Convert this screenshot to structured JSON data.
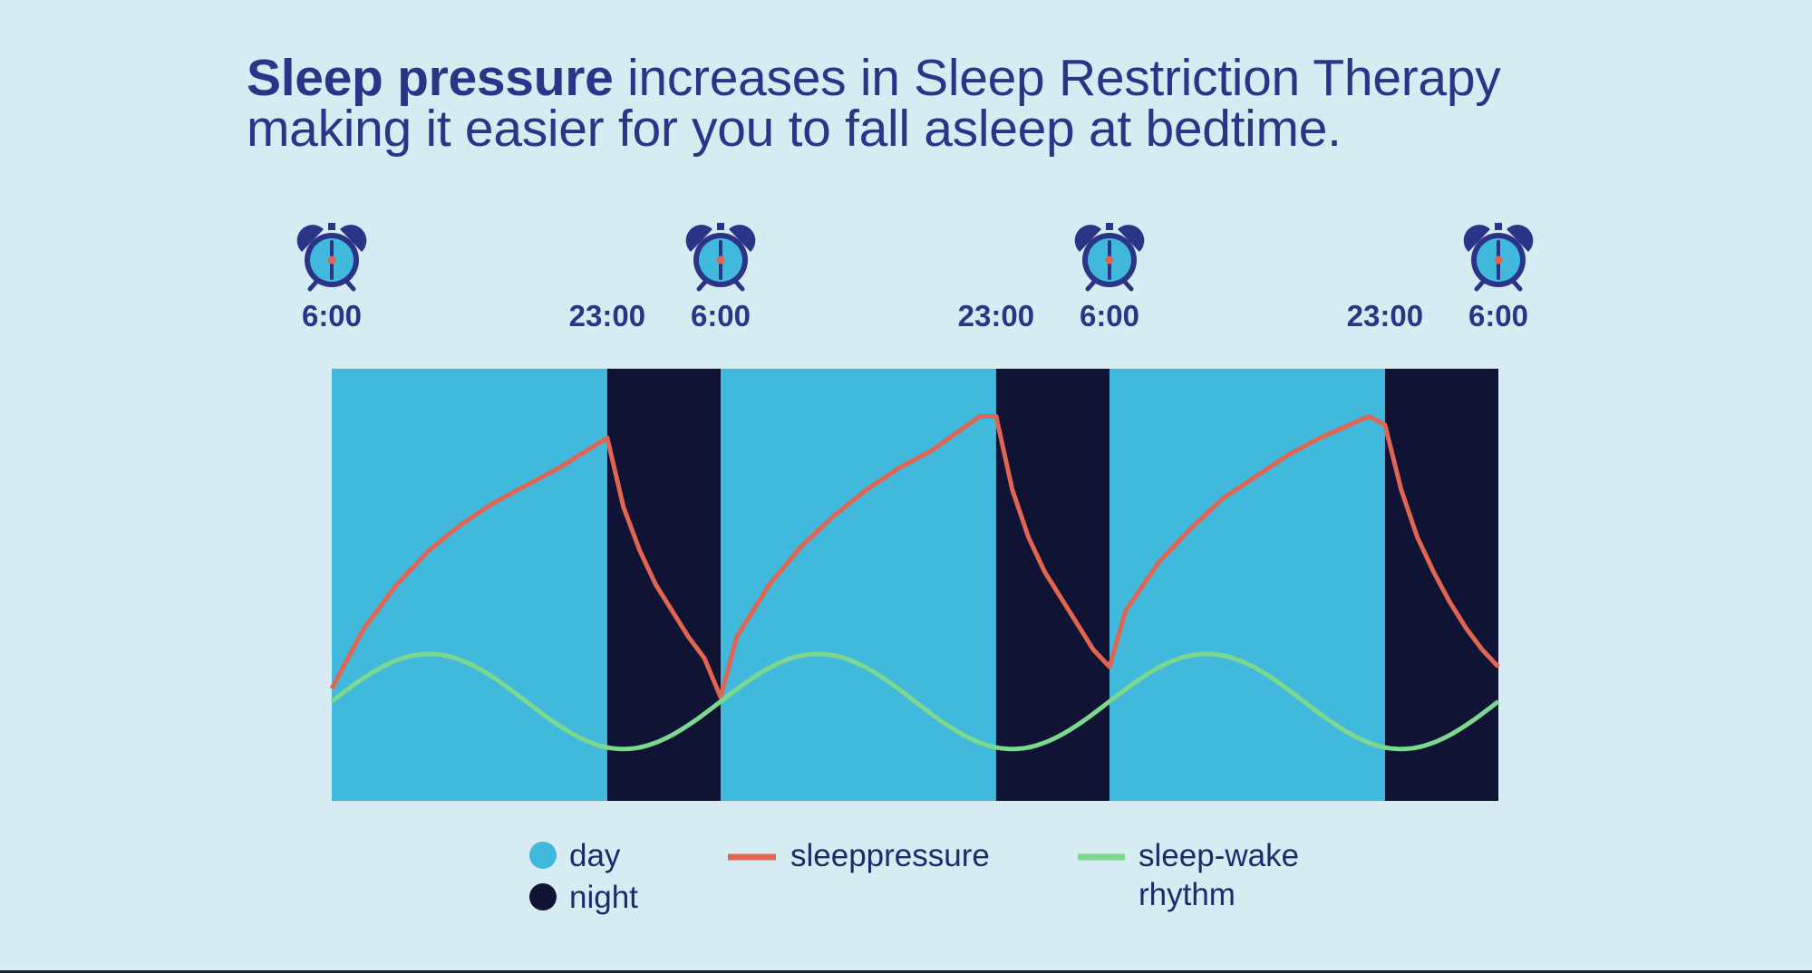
{
  "headline": {
    "bold": "Sleep pressure",
    "line1_rest": " increases in Sleep Restriction Therapy",
    "line2": "making it easier for you to fall asleep at bedtime."
  },
  "colors": {
    "background": "#d6ebf2",
    "day": "#41b9dc",
    "night": "#111335",
    "sleep_pressure": "#e06552",
    "sleep_wake_rhythm": "#7cd88f",
    "text": "#2b3487",
    "clock_face": "#41b9dc",
    "clock_outline": "#2b3487",
    "clock_center": "#e06552"
  },
  "clock_icon": "alarm-clock-icon",
  "chart_data": {
    "type": "area",
    "x_unit": "hours since first 6:00",
    "x_ticks": [
      {
        "x": 0,
        "label": "6:00",
        "clock": true
      },
      {
        "x": 17,
        "label": "23:00",
        "clock": false
      },
      {
        "x": 24,
        "label": "6:00",
        "clock": true
      },
      {
        "x": 41,
        "label": "23:00",
        "clock": false
      },
      {
        "x": 48,
        "label": "6:00",
        "clock": true
      },
      {
        "x": 65,
        "label": "23:00",
        "clock": false
      },
      {
        "x": 72,
        "label": "6:00",
        "clock": true
      }
    ],
    "xlim": [
      0,
      72
    ],
    "ylim": [
      0,
      100
    ],
    "periods": [
      {
        "type": "day",
        "start": 0,
        "end": 17
      },
      {
        "type": "night",
        "start": 17,
        "end": 24
      },
      {
        "type": "day",
        "start": 24,
        "end": 41
      },
      {
        "type": "night",
        "start": 41,
        "end": 48
      },
      {
        "type": "day",
        "start": 48,
        "end": 65
      },
      {
        "type": "night",
        "start": 65,
        "end": 72
      }
    ],
    "series": [
      {
        "name": "sleeppressure",
        "color_key": "sleep_pressure",
        "points": [
          [
            0,
            26
          ],
          [
            2,
            40
          ],
          [
            4,
            50
          ],
          [
            6,
            58
          ],
          [
            8,
            64
          ],
          [
            10,
            69
          ],
          [
            12,
            73
          ],
          [
            14,
            77
          ],
          [
            17,
            84
          ],
          [
            18,
            68
          ],
          [
            19,
            58
          ],
          [
            20,
            50
          ],
          [
            21,
            44
          ],
          [
            22,
            38
          ],
          [
            23,
            33
          ],
          [
            24,
            24
          ],
          [
            25,
            38
          ],
          [
            27,
            50
          ],
          [
            29,
            59
          ],
          [
            31,
            66
          ],
          [
            33,
            72
          ],
          [
            35,
            77
          ],
          [
            37,
            81
          ],
          [
            40,
            89
          ],
          [
            41,
            89
          ],
          [
            42,
            72
          ],
          [
            43,
            61
          ],
          [
            44,
            53
          ],
          [
            45,
            47
          ],
          [
            46,
            41
          ],
          [
            47,
            35
          ],
          [
            48,
            31
          ],
          [
            49,
            44
          ],
          [
            51,
            55
          ],
          [
            53,
            63
          ],
          [
            55,
            70
          ],
          [
            57,
            75
          ],
          [
            59,
            80
          ],
          [
            61,
            84
          ],
          [
            64,
            89
          ],
          [
            65,
            87
          ],
          [
            66,
            72
          ],
          [
            67,
            61
          ],
          [
            68,
            53
          ],
          [
            69,
            46
          ],
          [
            70,
            40
          ],
          [
            71,
            35
          ],
          [
            72,
            31
          ]
        ]
      },
      {
        "name": "sleep-wake rhythm",
        "color_key": "sleep_wake_rhythm",
        "amplitude": 11,
        "midline": 23,
        "period_hours": 24
      }
    ],
    "legend": [
      {
        "label": "day",
        "symbol": "dot",
        "color_key": "day"
      },
      {
        "label": "night",
        "symbol": "dot",
        "color_key": "night"
      },
      {
        "label": "sleeppressure",
        "symbol": "line",
        "color_key": "sleep_pressure"
      },
      {
        "label": "sleep-wake",
        "label2": "rhythm",
        "symbol": "line",
        "color_key": "sleep_wake_rhythm"
      }
    ],
    "legend_placement": "bottom-center"
  }
}
